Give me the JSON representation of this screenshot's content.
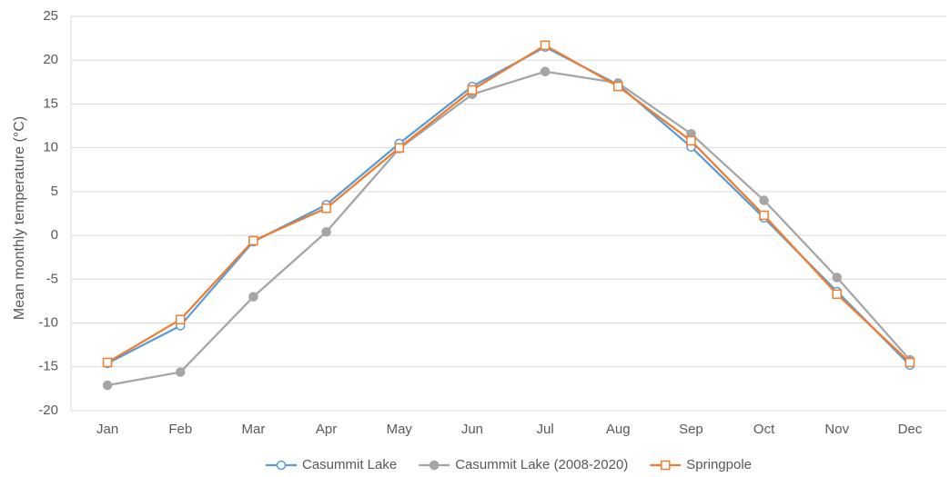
{
  "chart_data": {
    "type": "line",
    "y_label": "Mean monthly temperature (°C)",
    "categories": [
      "Jan",
      "Feb",
      "Mar",
      "Apr",
      "May",
      "Jun",
      "Jul",
      "Aug",
      "Sep",
      "Oct",
      "Nov",
      "Dec"
    ],
    "series": [
      {
        "name": "Casummit Lake",
        "color": "#5b9bd5",
        "marker": "circle-open",
        "values": [
          -14.6,
          -10.3,
          -0.7,
          3.5,
          10.5,
          17.0,
          21.5,
          17.2,
          10.1,
          2.0,
          -6.4,
          -14.8
        ]
      },
      {
        "name": "Casummit Lake (2008-2020)",
        "color": "#a5a5a5",
        "marker": "circle-filled",
        "values": [
          -17.1,
          -15.6,
          -7.0,
          0.4,
          9.9,
          16.1,
          18.7,
          17.4,
          11.6,
          4.0,
          -4.8,
          -14.2
        ]
      },
      {
        "name": "Springpole",
        "color": "#ed7d31",
        "marker": "square-open",
        "values": [
          -14.5,
          -9.6,
          -0.6,
          3.1,
          10.0,
          16.6,
          21.7,
          17.0,
          10.8,
          2.3,
          -6.7,
          -14.5
        ]
      }
    ],
    "ylim": [
      -20,
      25
    ],
    "yticks": [
      -20,
      -15,
      -10,
      -5,
      0,
      5,
      10,
      15,
      20,
      25
    ],
    "grid": true,
    "legend": "bottom"
  }
}
